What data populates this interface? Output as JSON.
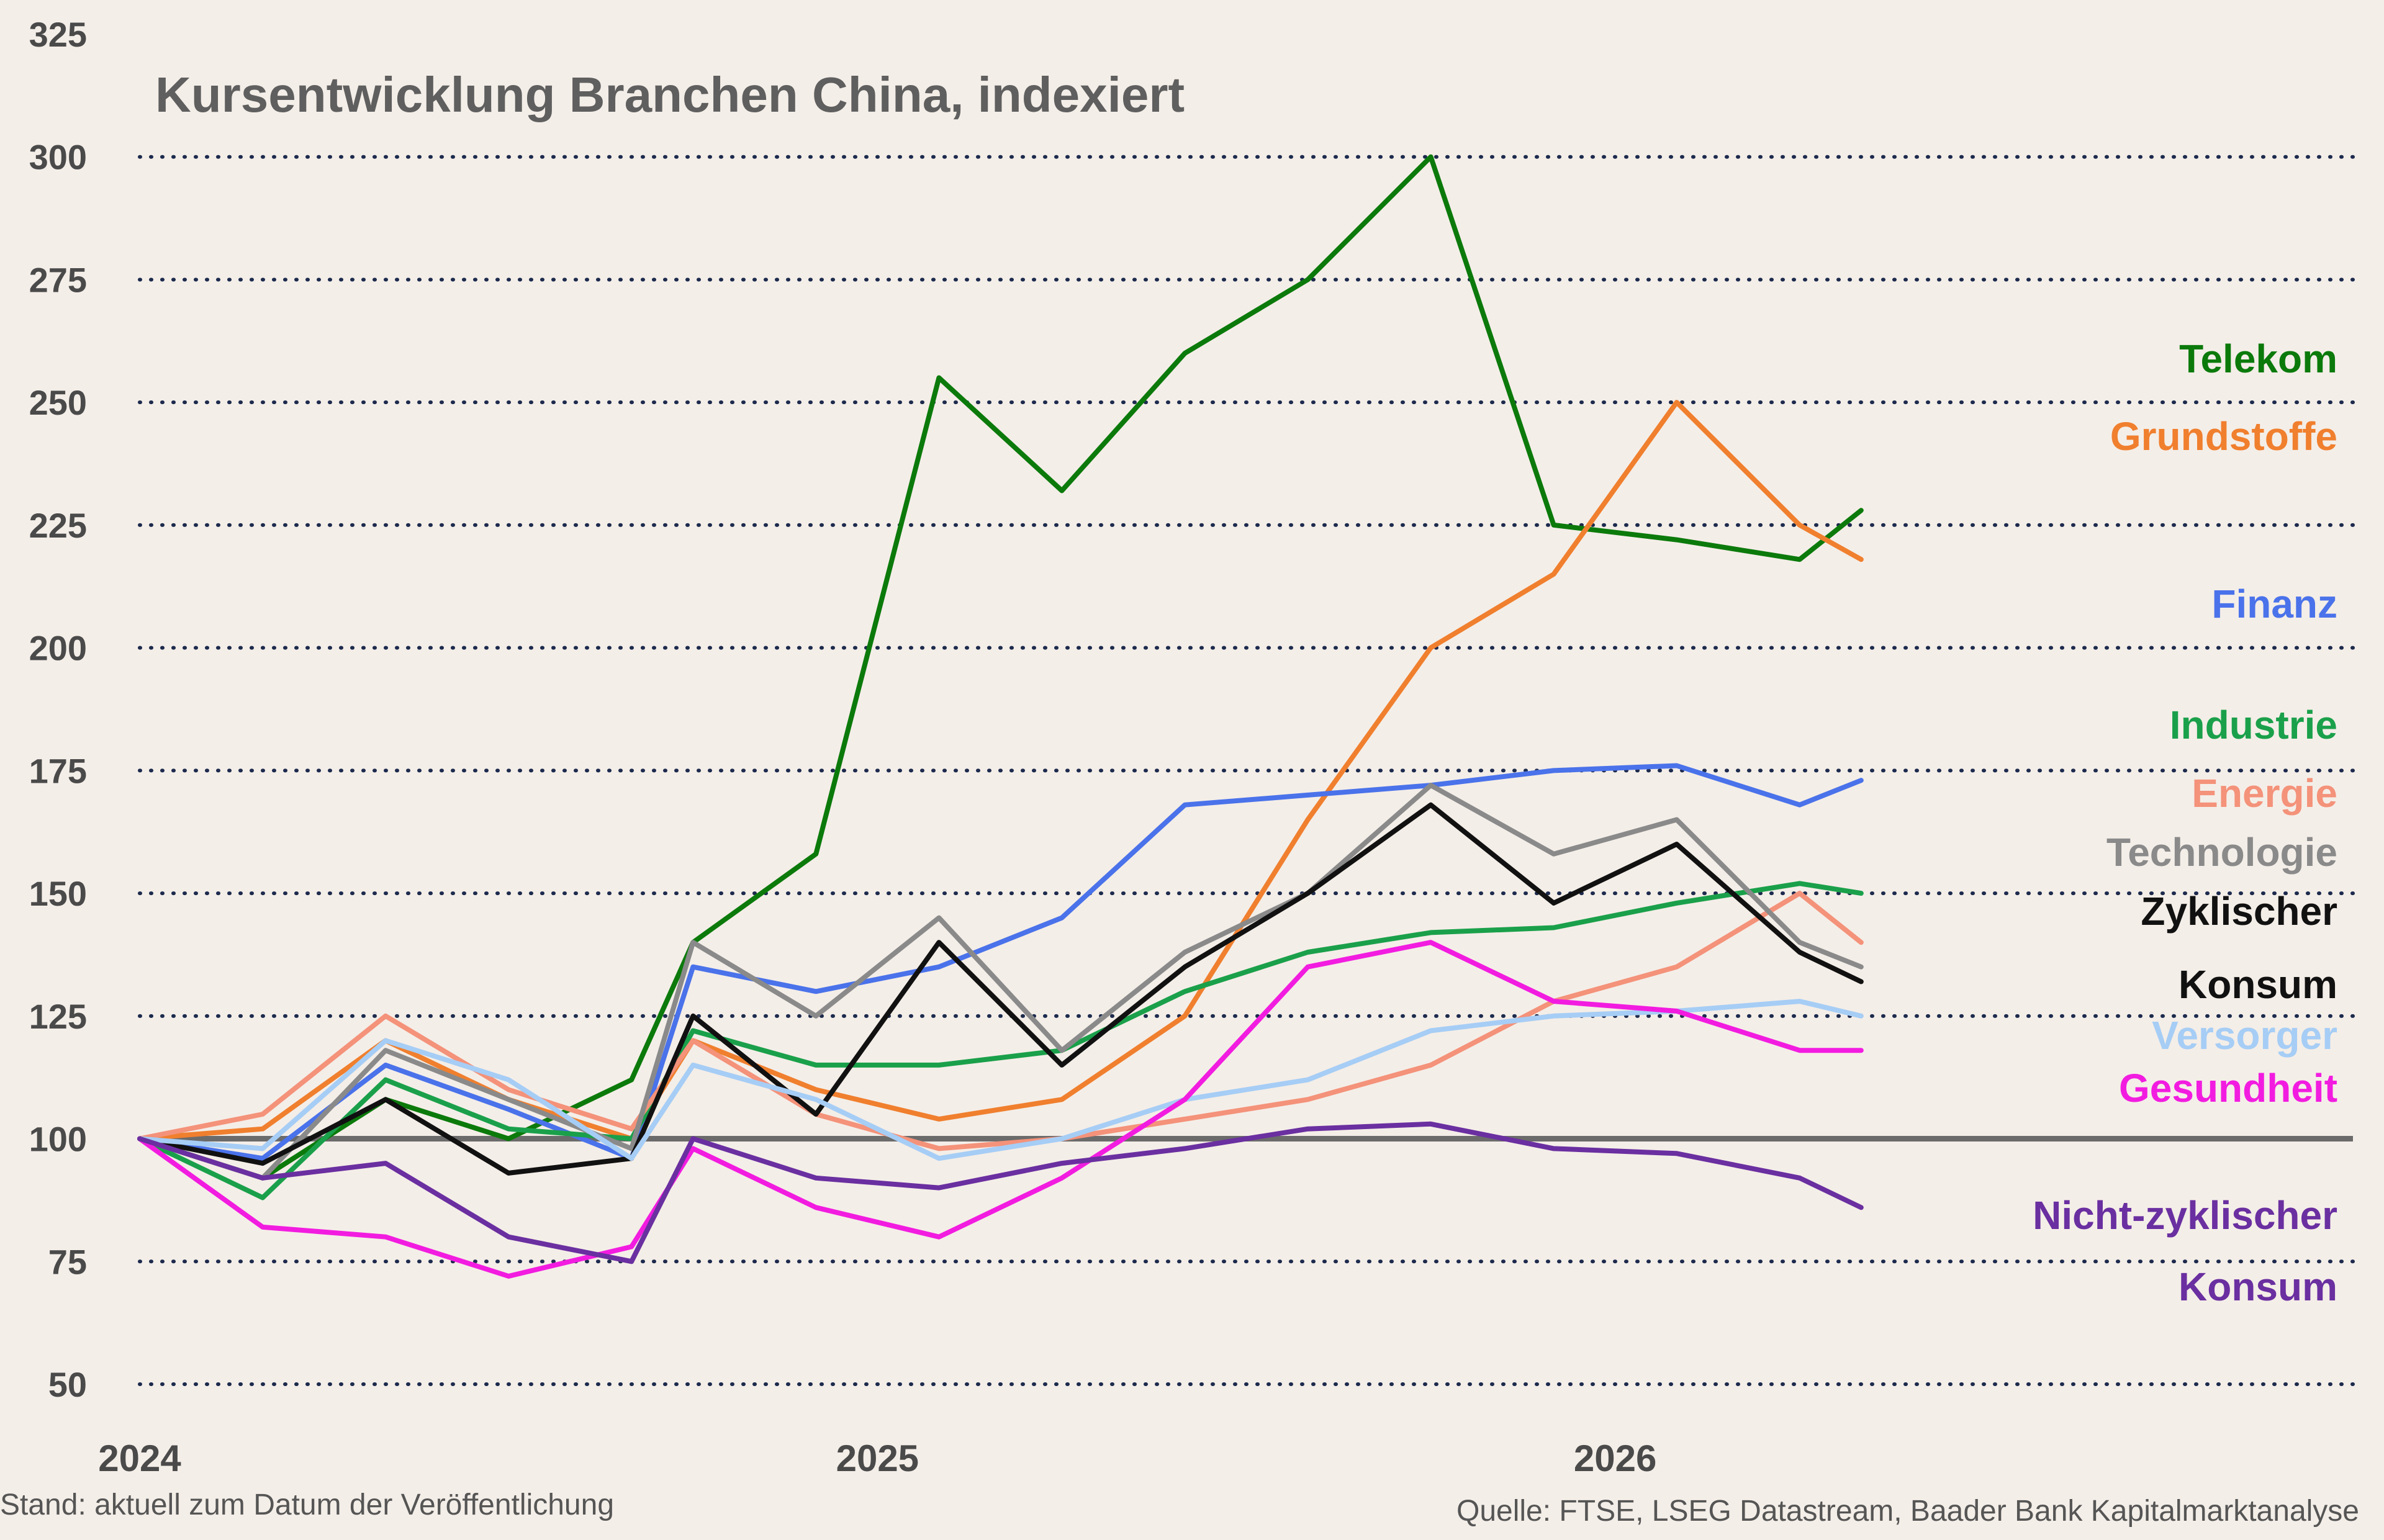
{
  "chart_data": {
    "type": "line",
    "title": "Kursentwicklung Branchen China, indexiert",
    "xlabel": "",
    "ylabel": "",
    "ylim": [
      50,
      325
    ],
    "yticks": [
      50,
      75,
      100,
      125,
      150,
      175,
      200,
      225,
      250,
      275,
      300,
      325
    ],
    "xlim": [
      "2024-01",
      "2027-01"
    ],
    "xticks": [
      "2024",
      "2025",
      "2026"
    ],
    "grid": "horizontal dotted",
    "baseline": 100,
    "legend": "right, labels next to lines",
    "x": [
      "2024-01",
      "2024-03",
      "2024-05",
      "2024-07",
      "2024-09",
      "2024-10",
      "2024-12",
      "2025-02",
      "2025-04",
      "2025-06",
      "2025-08",
      "2025-10",
      "2025-12",
      "2026-02",
      "2026-04",
      "2026-05"
    ],
    "series": [
      {
        "name": "Telekom",
        "color": "#0b7a0b",
        "values": [
          100,
          92,
          108,
          100,
          112,
          140,
          158,
          255,
          232,
          260,
          275,
          300,
          225,
          222,
          218,
          228
        ]
      },
      {
        "name": "Grundstoffe",
        "color": "#f07f2e",
        "values": [
          100,
          102,
          120,
          108,
          100,
          120,
          110,
          104,
          108,
          125,
          165,
          200,
          215,
          250,
          225,
          218
        ]
      },
      {
        "name": "Finanz",
        "color": "#4a72ea",
        "values": [
          100,
          96,
          115,
          106,
          96,
          135,
          130,
          135,
          145,
          168,
          170,
          172,
          175,
          176,
          168,
          173
        ]
      },
      {
        "name": "Industrie",
        "color": "#1aa04a",
        "values": [
          100,
          88,
          112,
          102,
          100,
          122,
          115,
          115,
          118,
          130,
          138,
          142,
          143,
          148,
          152,
          150
        ]
      },
      {
        "name": "Energie",
        "color": "#f4927a",
        "values": [
          100,
          105,
          125,
          110,
          102,
          120,
          105,
          98,
          100,
          104,
          108,
          115,
          128,
          135,
          150,
          140
        ]
      },
      {
        "name": "Technologie",
        "color": "#8a8a8a",
        "values": [
          100,
          92,
          118,
          108,
          98,
          140,
          125,
          145,
          118,
          138,
          150,
          172,
          158,
          165,
          140,
          135
        ]
      },
      {
        "name": "Zyklischer Konsum",
        "color": "#111111",
        "values": [
          100,
          95,
          108,
          93,
          96,
          125,
          105,
          140,
          115,
          135,
          150,
          168,
          148,
          160,
          138,
          132
        ]
      },
      {
        "name": "Versorger",
        "color": "#a6cdf5",
        "values": [
          100,
          98,
          120,
          112,
          96,
          115,
          108,
          96,
          100,
          108,
          112,
          122,
          125,
          126,
          128,
          125
        ]
      },
      {
        "name": "Gesundheit",
        "color": "#f21ce0",
        "values": [
          100,
          82,
          80,
          72,
          78,
          98,
          86,
          80,
          92,
          108,
          135,
          140,
          128,
          126,
          118,
          118
        ]
      },
      {
        "name": "Nicht-zyklischer Konsum",
        "color": "#6a2fa0",
        "values": [
          100,
          92,
          95,
          80,
          75,
          100,
          92,
          90,
          95,
          98,
          102,
          103,
          98,
          97,
          92,
          86
        ]
      }
    ],
    "legend_labels": [
      {
        "text": "Telekom",
        "color": "#0b7a0b"
      },
      {
        "text": "Grundstoffe",
        "color": "#f07f2e"
      },
      {
        "text": "Finanz",
        "color": "#4a72ea"
      },
      {
        "text": "Industrie",
        "color": "#1aa04a"
      },
      {
        "text": "Energie",
        "color": "#f4927a"
      },
      {
        "text": "Technologie",
        "color": "#8a8a8a"
      },
      {
        "text": "Zyklischer",
        "color": "#111111"
      },
      {
        "text": "Konsum",
        "color": "#111111"
      },
      {
        "text": "Versorger",
        "color": "#a6cdf5"
      },
      {
        "text": "Gesundheit",
        "color": "#f21ce0"
      },
      {
        "text": "Nicht-zyklischer",
        "color": "#6a2fa0"
      },
      {
        "text": "Konsum",
        "color": "#6a2fa0"
      }
    ]
  },
  "footer": {
    "stand": "Stand: aktuell zum Datum der Veröffentlichung",
    "source": "Quelle: FTSE, LSEG Datastream, Baader Bank Kapitalmarktanalyse"
  },
  "colors": {
    "background": "#f4eee8",
    "grid": "#1c2a4d",
    "baseline": "#6b6b6b"
  }
}
